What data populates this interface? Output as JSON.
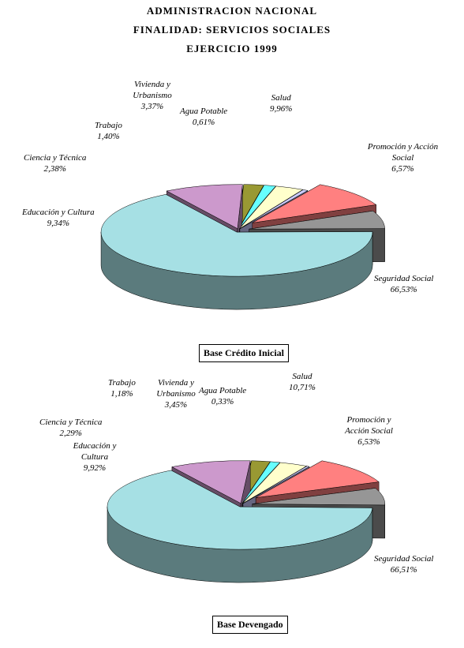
{
  "titles": [
    "ADMINISTRACION NACIONAL",
    "FINALIDAD: SERVICIOS SOCIALES",
    "EJERCICIO 1999"
  ],
  "colors": {
    "seguridad_social": "#a6e0e4",
    "salud": "#ff8080",
    "promocion": "#969696",
    "educacion": "#cc99cc",
    "ciencia": "#999933",
    "trabajo": "#66ffff",
    "vivienda": "#ffffcc",
    "agua": "#ccccff"
  },
  "chart_data": [
    {
      "type": "pie",
      "title": "Base Crédito Inicial",
      "slices": [
        {
          "key": "salud",
          "label": "Salud",
          "value": 9.96,
          "pct": "9,96%"
        },
        {
          "key": "promocion",
          "label": "Promoción y Acción Social",
          "value": 6.57,
          "pct": "6,57%"
        },
        {
          "key": "seguridad_social",
          "label": "Seguridad Social",
          "value": 66.53,
          "pct": "66,53%"
        },
        {
          "key": "educacion",
          "label": "Educación y Cultura",
          "value": 9.34,
          "pct": "9,34%"
        },
        {
          "key": "ciencia",
          "label": "Ciencia y Técnica",
          "value": 2.38,
          "pct": "2,38%"
        },
        {
          "key": "trabajo",
          "label": "Trabajo",
          "value": 1.4,
          "pct": "1,40%"
        },
        {
          "key": "vivienda",
          "label": "Vivienda y Urbanismo",
          "value": 3.37,
          "pct": "3,37%"
        },
        {
          "key": "agua",
          "label": "Agua Potable",
          "value": 0.61,
          "pct": "0,61%"
        }
      ]
    },
    {
      "type": "pie",
      "title": "Base Devengado",
      "slices": [
        {
          "key": "salud",
          "label": "Salud",
          "value": 10.71,
          "pct": "10,71%"
        },
        {
          "key": "promocion",
          "label": "Promoción y Acción Social",
          "value": 6.53,
          "pct": "6,53%"
        },
        {
          "key": "seguridad_social",
          "label": "Seguridad Social",
          "value": 66.51,
          "pct": "66,51%"
        },
        {
          "key": "educacion",
          "label": "Educación y Cultura",
          "value": 9.92,
          "pct": "9,92%"
        },
        {
          "key": "ciencia",
          "label": "Ciencia y Técnica",
          "value": 2.29,
          "pct": "2,29%"
        },
        {
          "key": "trabajo",
          "label": "Trabajo",
          "value": 1.18,
          "pct": "1,18%"
        },
        {
          "key": "vivienda",
          "label": "Vivienda y Urbanismo",
          "value": 3.45,
          "pct": "3,45%"
        },
        {
          "key": "agua",
          "label": "Agua Potable",
          "value": 0.33,
          "pct": "0,33%"
        }
      ]
    }
  ]
}
